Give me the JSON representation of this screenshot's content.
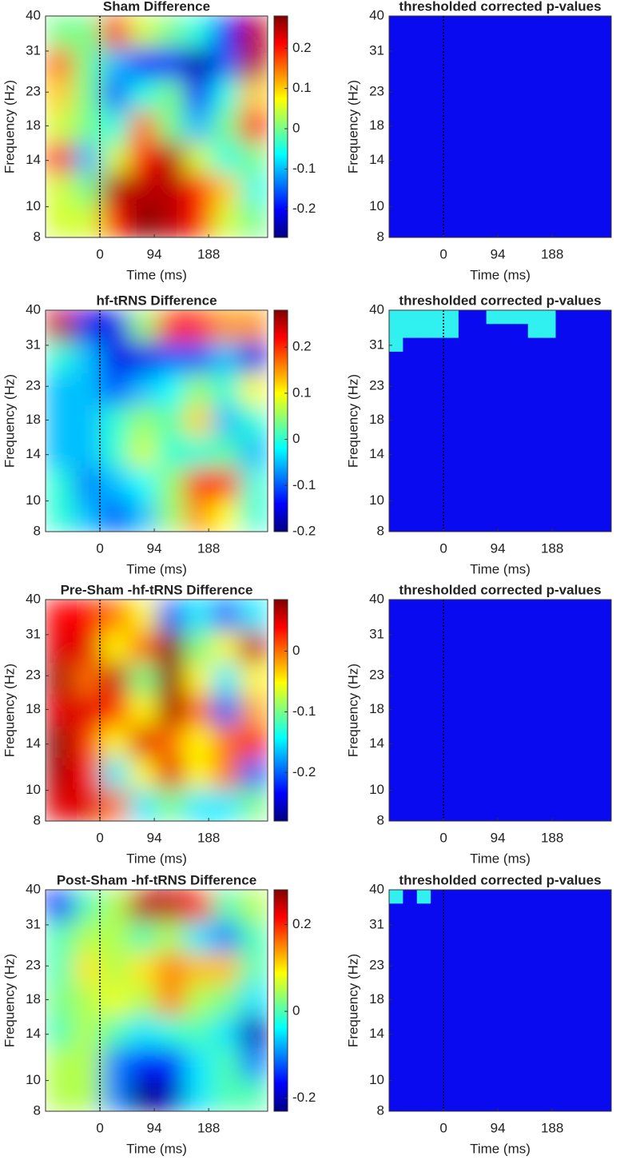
{
  "chart_data": [
    {
      "type": "heatmap",
      "title": "Sham Difference",
      "xlabel": "Time (ms)",
      "ylabel": "Frequency (Hz)",
      "xlim": [
        -94,
        290
      ],
      "xticks": [
        0,
        94,
        188
      ],
      "ylim": [
        8,
        40
      ],
      "yticks": [
        8,
        10,
        14,
        18,
        23,
        31,
        40
      ],
      "log_y": true,
      "marker_x": 0,
      "colormap": "jet",
      "clim": [
        -0.27,
        0.28
      ],
      "cticks": [
        -0.2,
        -0.1,
        0,
        0.1,
        0.2
      ],
      "z": [
        [
          0,
          0,
          0.2,
          0.05,
          0,
          -0.05,
          -0.2,
          0.25
        ],
        [
          0.15,
          0,
          -0.1,
          -0.2,
          -0.2,
          -0.25,
          -0.15,
          0.25
        ],
        [
          0.1,
          0,
          -0.15,
          -0.05,
          0,
          -0.2,
          -0.05,
          0.1
        ],
        [
          0.05,
          0,
          -0.05,
          0.15,
          0,
          -0.1,
          0,
          0.2
        ],
        [
          0.2,
          -0.1,
          0.05,
          0.2,
          0.25,
          0.05,
          -0.05,
          0
        ],
        [
          0.05,
          0,
          0.25,
          0.25,
          0.25,
          0.2,
          0.1,
          -0.05
        ],
        [
          0.05,
          0.05,
          0.2,
          0.28,
          0.25,
          0.2,
          0.05,
          0
        ]
      ]
    },
    {
      "type": "heatmap",
      "title": "thresholded corrected p-values",
      "xlabel": "Time (ms)",
      "ylabel": "Frequency (Hz)",
      "xlim": [
        -94,
        290
      ],
      "xticks": [
        0,
        94,
        188
      ],
      "ylim": [
        8,
        40
      ],
      "yticks": [
        8,
        10,
        14,
        18,
        23,
        31,
        40
      ],
      "log_y": true,
      "marker_x": 0,
      "colormap": [
        "#0a0af0",
        "#30f0f0"
      ],
      "clim": [
        0,
        1
      ],
      "z": [
        [
          0
        ]
      ]
    },
    {
      "type": "heatmap",
      "title": "hf-tRNS Difference",
      "xlabel": "Time (ms)",
      "ylabel": "Frequency (Hz)",
      "xlim": [
        -94,
        290
      ],
      "xticks": [
        0,
        94,
        188
      ],
      "ylim": [
        8,
        40
      ],
      "yticks": [
        8,
        10,
        14,
        18,
        23,
        31,
        40
      ],
      "log_y": true,
      "marker_x": 0,
      "colormap": "jet",
      "clim": [
        -0.2,
        0.28
      ],
      "cticks": [
        -0.2,
        -0.1,
        0,
        0.1,
        0.2
      ],
      "z": [
        [
          0.25,
          -0.15,
          -0.15,
          0.05,
          0.2,
          0.2,
          0.15,
          0.15
        ],
        [
          0,
          -0.05,
          -0.15,
          -0.15,
          -0.1,
          -0.1,
          -0.05,
          -0.15
        ],
        [
          -0.05,
          -0.05,
          -0.1,
          -0.05,
          -0.02,
          0.05,
          0,
          0.1
        ],
        [
          -0.05,
          -0.05,
          0,
          0.05,
          0.02,
          0.12,
          -0.05,
          0
        ],
        [
          -0.05,
          -0.05,
          0,
          0.08,
          0,
          0,
          0.02,
          -0.05
        ],
        [
          0,
          -0.08,
          -0.05,
          -0.02,
          0.05,
          0.2,
          0.2,
          0
        ],
        [
          0,
          -0.05,
          -0.1,
          -0.05,
          0.05,
          0.15,
          0.1,
          0
        ]
      ]
    },
    {
      "type": "heatmap",
      "title": "thresholded corrected p-values",
      "xlabel": "Time (ms)",
      "ylabel": "Frequency (Hz)",
      "xlim": [
        -94,
        290
      ],
      "xticks": [
        0,
        94,
        188
      ],
      "ylim": [
        8,
        40
      ],
      "yticks": [
        8,
        10,
        14,
        18,
        23,
        31,
        40
      ],
      "log_y": true,
      "marker_x": 0,
      "colormap": [
        "#0a0af0",
        "#30f0f0"
      ],
      "clim": [
        0,
        1
      ],
      "z": [
        [
          1,
          1,
          1,
          1,
          1,
          0,
          0,
          1,
          1,
          1,
          1,
          1,
          0,
          0,
          0,
          0
        ],
        [
          1,
          1,
          1,
          1,
          1,
          0,
          0,
          0,
          0,
          0,
          1,
          1,
          0,
          0,
          0,
          0
        ],
        [
          1,
          0,
          0,
          0,
          0,
          0,
          0,
          0,
          0,
          0,
          0,
          0,
          0,
          0,
          0,
          0
        ],
        [
          0,
          0,
          0,
          0,
          0,
          0,
          0,
          0,
          0,
          0,
          0,
          0,
          0,
          0,
          0,
          0
        ],
        [
          0,
          0,
          0,
          0,
          0,
          0,
          0,
          0,
          0,
          0,
          0,
          0,
          0,
          0,
          0,
          0
        ],
        [
          0,
          0,
          0,
          0,
          0,
          0,
          0,
          0,
          0,
          0,
          0,
          0,
          0,
          0,
          0,
          0
        ],
        [
          0,
          0,
          0,
          0,
          0,
          0,
          0,
          0,
          0,
          0,
          0,
          0,
          0,
          0,
          0,
          0
        ],
        [
          0,
          0,
          0,
          0,
          0,
          0,
          0,
          0,
          0,
          0,
          0,
          0,
          0,
          0,
          0,
          0
        ],
        [
          0,
          0,
          0,
          0,
          0,
          0,
          0,
          0,
          0,
          0,
          0,
          0,
          0,
          0,
          0,
          0
        ],
        [
          0,
          0,
          0,
          0,
          0,
          0,
          0,
          0,
          0,
          0,
          0,
          0,
          0,
          0,
          0,
          0
        ],
        [
          0,
          0,
          0,
          0,
          0,
          0,
          0,
          0,
          0,
          0,
          0,
          0,
          0,
          0,
          0,
          0
        ],
        [
          0,
          0,
          0,
          0,
          0,
          0,
          0,
          0,
          0,
          0,
          0,
          0,
          0,
          0,
          0,
          0
        ],
        [
          0,
          0,
          0,
          0,
          0,
          0,
          0,
          0,
          0,
          0,
          0,
          0,
          0,
          0,
          0,
          0
        ],
        [
          0,
          0,
          0,
          0,
          0,
          0,
          0,
          0,
          0,
          0,
          0,
          0,
          0,
          0,
          0,
          0
        ],
        [
          0,
          0,
          0,
          0,
          0,
          0,
          0,
          0,
          0,
          0,
          0,
          0,
          0,
          0,
          0,
          0
        ],
        [
          0,
          0,
          0,
          0,
          0,
          0,
          0,
          0,
          0,
          0,
          0,
          0,
          0,
          0,
          0,
          0
        ]
      ]
    },
    {
      "type": "heatmap",
      "title": "Pre-Sham -hf-tRNS Difference",
      "xlabel": "Time (ms)",
      "ylabel": "Frequency (Hz)",
      "xlim": [
        -94,
        290
      ],
      "xticks": [
        0,
        94,
        188
      ],
      "ylim": [
        8,
        40
      ],
      "yticks": [
        8,
        10,
        14,
        18,
        23,
        31,
        40
      ],
      "log_y": true,
      "marker_x": 0,
      "colormap": "jet",
      "clim": [
        -0.28,
        0.085
      ],
      "cticks": [
        -0.2,
        -0.1,
        0
      ],
      "z": [
        [
          0.04,
          0.04,
          0,
          -0.05,
          -0.2,
          -0.15,
          -0.2,
          -0.15
        ],
        [
          0.05,
          0.05,
          -0.05,
          0,
          0.08,
          -0.1,
          -0.05,
          0.06
        ],
        [
          0.07,
          0,
          0.06,
          -0.1,
          0.08,
          -0.05,
          -0.15,
          -0.05
        ],
        [
          0.05,
          0.05,
          0.03,
          -0.05,
          0.07,
          0,
          -0.2,
          -0.02
        ],
        [
          0.08,
          0.02,
          -0.05,
          0.05,
          0,
          -0.05,
          0,
          0.03
        ],
        [
          0.07,
          0.04,
          -0.15,
          -0.05,
          0.05,
          -0.05,
          0,
          -0.2
        ],
        [
          0.05,
          0.05,
          0,
          -0.15,
          -0.1,
          -0.15,
          -0.15,
          -0.1
        ]
      ]
    },
    {
      "type": "heatmap",
      "title": "thresholded corrected p-values",
      "xlabel": "Time (ms)",
      "ylabel": "Frequency (Hz)",
      "xlim": [
        -94,
        290
      ],
      "xticks": [
        0,
        94,
        188
      ],
      "ylim": [
        8,
        40
      ],
      "yticks": [
        8,
        10,
        14,
        18,
        23,
        31,
        40
      ],
      "log_y": true,
      "marker_x": 0,
      "colormap": [
        "#0a0af0",
        "#30f0f0"
      ],
      "clim": [
        0,
        1
      ],
      "z": [
        [
          0
        ]
      ]
    },
    {
      "type": "heatmap",
      "title": "Post-Sham -hf-tRNS Difference",
      "xlabel": "Time (ms)",
      "ylabel": "Frequency (Hz)",
      "xlim": [
        -94,
        290
      ],
      "xticks": [
        0,
        94,
        188
      ],
      "ylim": [
        8,
        40
      ],
      "yticks": [
        8,
        10,
        14,
        18,
        23,
        31,
        40
      ],
      "log_y": true,
      "marker_x": 0,
      "colormap": "jet",
      "clim": [
        -0.23,
        0.28
      ],
      "cticks": [
        -0.2,
        0,
        0.2
      ],
      "z": [
        [
          -0.15,
          0,
          0.05,
          0.25,
          0.25,
          0.2,
          0,
          0.05
        ],
        [
          0,
          0.05,
          0.05,
          0,
          0.05,
          -0.05,
          -0.1,
          0
        ],
        [
          0,
          0.1,
          0.05,
          0.1,
          0.15,
          0.12,
          0.12,
          0
        ],
        [
          0.02,
          0.05,
          0.08,
          0.05,
          0.15,
          0.05,
          0.02,
          -0.05
        ],
        [
          0,
          0.05,
          0,
          -0.05,
          -0.02,
          0,
          -0.05,
          -0.2
        ],
        [
          0.05,
          0.05,
          -0.1,
          -0.15,
          -0.15,
          -0.05,
          0,
          -0.1
        ],
        [
          0.05,
          0.05,
          -0.1,
          -0.23,
          -0.2,
          -0.05,
          0,
          0
        ]
      ]
    },
    {
      "type": "heatmap",
      "title": "thresholded corrected p-values",
      "xlabel": "Time (ms)",
      "ylabel": "Frequency (Hz)",
      "xlim": [
        -94,
        290
      ],
      "xticks": [
        0,
        94,
        188
      ],
      "ylim": [
        8,
        40
      ],
      "yticks": [
        8,
        10,
        14,
        18,
        23,
        31,
        40
      ],
      "log_y": true,
      "marker_x": 0,
      "colormap": [
        "#0a0af0",
        "#30f0f0"
      ],
      "clim": [
        0,
        1
      ],
      "z": [
        [
          1,
          0,
          1,
          0,
          0,
          0,
          0,
          0,
          0,
          0,
          0,
          0,
          0,
          0,
          0,
          0
        ],
        [
          0,
          0,
          0,
          0,
          0,
          0,
          0,
          0,
          0,
          0,
          0,
          0,
          0,
          0,
          0,
          0
        ],
        [
          0,
          0,
          0,
          0,
          0,
          0,
          0,
          0,
          0,
          0,
          0,
          0,
          0,
          0,
          0,
          0
        ],
        [
          0,
          0,
          0,
          0,
          0,
          0,
          0,
          0,
          0,
          0,
          0,
          0,
          0,
          0,
          0,
          0
        ],
        [
          0,
          0,
          0,
          0,
          0,
          0,
          0,
          0,
          0,
          0,
          0,
          0,
          0,
          0,
          0,
          0
        ],
        [
          0,
          0,
          0,
          0,
          0,
          0,
          0,
          0,
          0,
          0,
          0,
          0,
          0,
          0,
          0,
          0
        ],
        [
          0,
          0,
          0,
          0,
          0,
          0,
          0,
          0,
          0,
          0,
          0,
          0,
          0,
          0,
          0,
          0
        ],
        [
          0,
          0,
          0,
          0,
          0,
          0,
          0,
          0,
          0,
          0,
          0,
          0,
          0,
          0,
          0,
          0
        ],
        [
          0,
          0,
          0,
          0,
          0,
          0,
          0,
          0,
          0,
          0,
          0,
          0,
          0,
          0,
          0,
          0
        ],
        [
          0,
          0,
          0,
          0,
          0,
          0,
          0,
          0,
          0,
          0,
          0,
          0,
          0,
          0,
          0,
          0
        ],
        [
          0,
          0,
          0,
          0,
          0,
          0,
          0,
          0,
          0,
          0,
          0,
          0,
          0,
          0,
          0,
          0
        ],
        [
          0,
          0,
          0,
          0,
          0,
          0,
          0,
          0,
          0,
          0,
          0,
          0,
          0,
          0,
          0,
          0
        ],
        [
          0,
          0,
          0,
          0,
          0,
          0,
          0,
          0,
          0,
          0,
          0,
          0,
          0,
          0,
          0,
          0
        ],
        [
          0,
          0,
          0,
          0,
          0,
          0,
          0,
          0,
          0,
          0,
          0,
          0,
          0,
          0,
          0,
          0
        ],
        [
          0,
          0,
          0,
          0,
          0,
          0,
          0,
          0,
          0,
          0,
          0,
          0,
          0,
          0,
          0,
          0
        ],
        [
          0,
          0,
          0,
          0,
          0,
          0,
          0,
          0,
          0,
          0,
          0,
          0,
          0,
          0,
          0,
          0
        ]
      ]
    }
  ]
}
